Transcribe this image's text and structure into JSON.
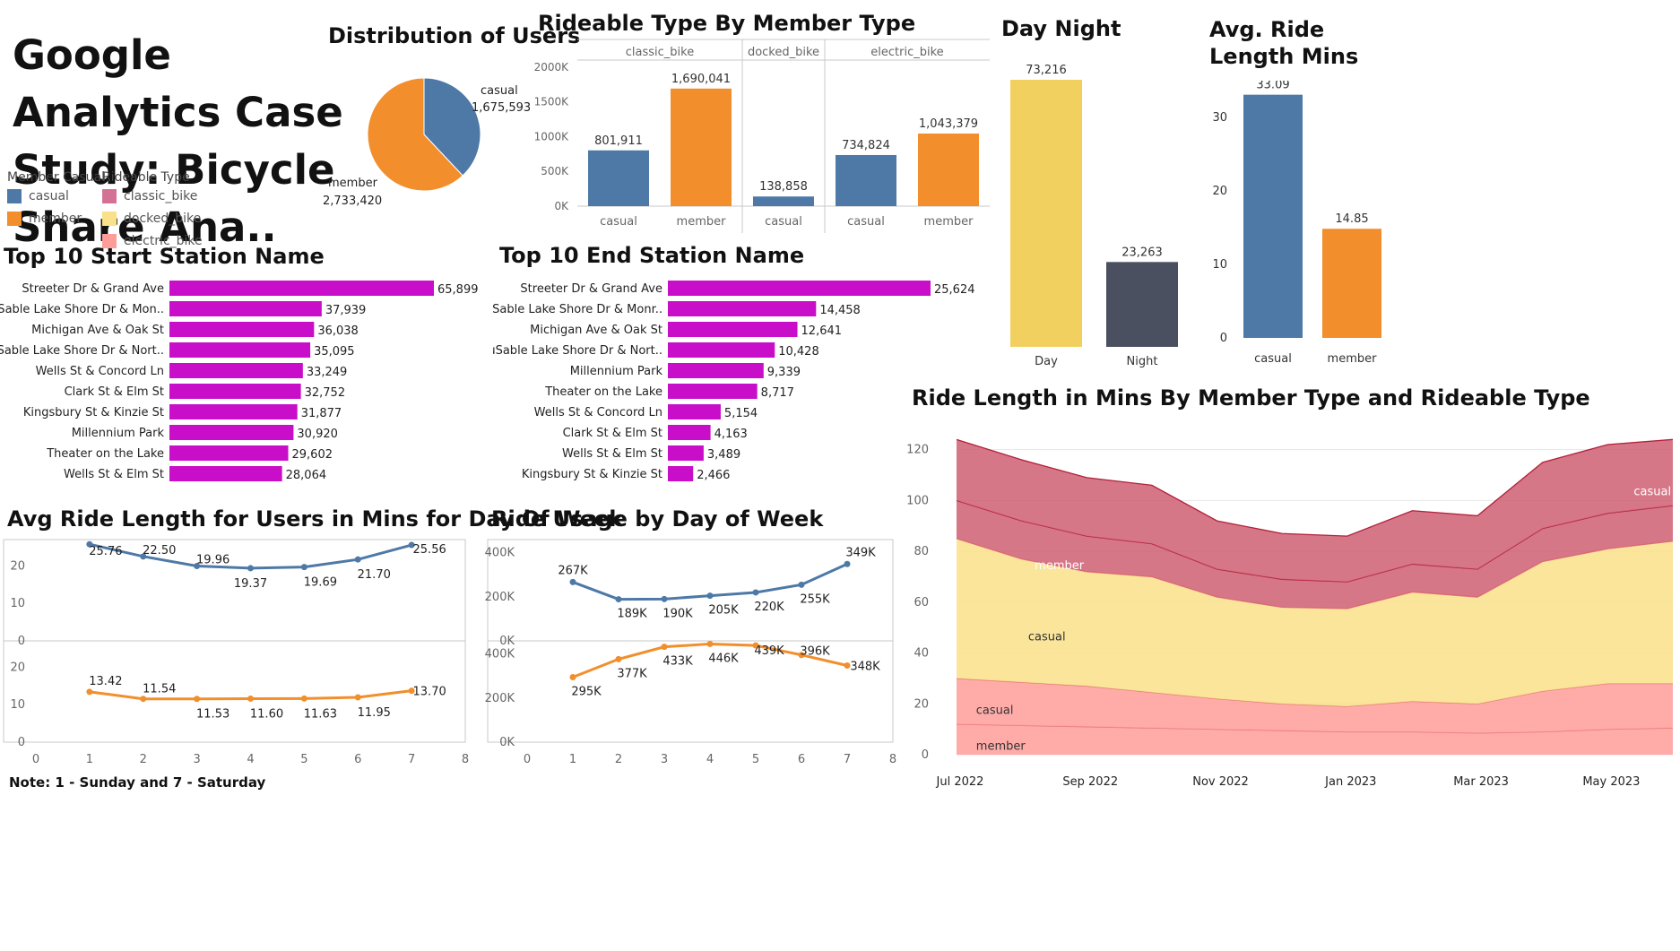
{
  "dashboard": {
    "title": "Google Analytics Case Study: Bicycle Share Ana..",
    "note": "Note: 1 - Sunday and 7 - Saturday"
  },
  "colors": {
    "casual": "#4e79a7",
    "member": "#f28e2b",
    "classic_bike": "#d37295",
    "docked_bike": "#f9e08a",
    "electric_bike": "#ff9d9a",
    "magenta": "#c80ec8",
    "day": "#f2d060",
    "night": "#4a5060"
  },
  "legends": {
    "member_casual": {
      "title": "Member Casual",
      "items": [
        {
          "label": "casual",
          "color": "#4e79a7"
        },
        {
          "label": "member",
          "color": "#f28e2b"
        }
      ]
    },
    "rideable_type": {
      "title": "Rideable Type",
      "items": [
        {
          "label": "classic_bike",
          "color": "#d37295"
        },
        {
          "label": "docked_bike",
          "color": "#f9e08a"
        },
        {
          "label": "electric_bike",
          "color": "#ff9d9a"
        }
      ]
    }
  },
  "chart_data": [
    {
      "id": "distribution",
      "type": "pie",
      "title": "Distribution of Users",
      "slices": [
        {
          "label": "casual",
          "value": 1675593,
          "display": "1,675,593",
          "color": "#4e79a7"
        },
        {
          "label": "member",
          "value": 2733420,
          "display": "2,733,420",
          "color": "#f28e2b"
        }
      ]
    },
    {
      "id": "rideable",
      "type": "bar",
      "title": "Rideable Type By Member Type",
      "groups": [
        {
          "name": "classic_bike",
          "bars": [
            {
              "label": "casual",
              "value": 801911,
              "display": "801,911"
            },
            {
              "label": "member",
              "value": 1690041,
              "display": "1,690,041"
            }
          ]
        },
        {
          "name": "docked_bike",
          "bars": [
            {
              "label": "casual",
              "value": 138858,
              "display": "138,858"
            }
          ]
        },
        {
          "name": "electric_bike",
          "bars": [
            {
              "label": "casual",
              "value": 734824,
              "display": "734,824"
            },
            {
              "label": "member",
              "value": 1043379,
              "display": "1,043,379"
            }
          ]
        }
      ],
      "yticks": [
        {
          "value": 0,
          "label": "0K"
        },
        {
          "value": 500000,
          "label": "500K"
        },
        {
          "value": 1000000,
          "label": "1000K"
        },
        {
          "value": 1500000,
          "label": "1500K"
        },
        {
          "value": 2000000,
          "label": "2000K"
        }
      ],
      "ylim": [
        0,
        2100000
      ]
    },
    {
      "id": "daynight",
      "type": "bar",
      "title": "Day Night",
      "categories": [
        "Day",
        "Night"
      ],
      "values": [
        73216,
        23263
      ],
      "labels": [
        "73,216",
        "23,263"
      ],
      "ylim": [
        0,
        80000
      ]
    },
    {
      "id": "avgride",
      "type": "bar",
      "title": "Avg. Ride Length Mins",
      "categories": [
        "casual",
        "member"
      ],
      "values": [
        33.09,
        14.85
      ],
      "labels": [
        "33.09",
        "14.85"
      ],
      "yticks": [
        0,
        10,
        20,
        30
      ],
      "ylim": [
        0,
        36
      ]
    },
    {
      "id": "topstart",
      "type": "bar",
      "title": "Top 10 Start Station Name",
      "categories": [
        "Streeter Dr & Grand Ave",
        "DuSable Lake Shore Dr & Mon..",
        "Michigan Ave & Oak St",
        "DuSable Lake Shore Dr & Nort..",
        "Wells St & Concord Ln",
        "Clark St & Elm St",
        "Kingsbury St & Kinzie St",
        "Millennium Park",
        "Theater on the Lake",
        "Wells St & Elm St"
      ],
      "values": [
        65899,
        37939,
        36038,
        35095,
        33249,
        32752,
        31877,
        30920,
        29602,
        28064
      ],
      "labels": [
        "65,899",
        "37,939",
        "36,038",
        "35,095",
        "33,249",
        "32,752",
        "31,877",
        "30,920",
        "29,602",
        "28,064"
      ],
      "xlim": [
        0,
        65899
      ]
    },
    {
      "id": "topend",
      "type": "bar",
      "title": "Top 10 End Station Name",
      "categories": [
        "Streeter Dr & Grand Ave",
        "DuSable Lake Shore Dr & Monr..",
        "Michigan Ave & Oak St",
        "DuSable Lake Shore Dr & Nort..",
        "Millennium Park",
        "Theater on the Lake",
        "Wells St & Concord Ln",
        "Clark St & Elm St",
        "Wells St & Elm St",
        "Kingsbury St & Kinzie St"
      ],
      "values": [
        25624,
        14458,
        12641,
        10428,
        9339,
        8717,
        5154,
        4163,
        3489,
        2466
      ],
      "labels": [
        "25,624",
        "14,458",
        "12,641",
        "10,428",
        "9,339",
        "8,717",
        "5,154",
        "4,163",
        "3,489",
        "2,466"
      ],
      "xlim": [
        0,
        25624
      ]
    },
    {
      "id": "avgdow",
      "type": "line",
      "title": "Avg Ride Length for Users in Mins for Day Of Week",
      "x": [
        1,
        2,
        3,
        4,
        5,
        6,
        7
      ],
      "xticks": [
        0,
        1,
        2,
        3,
        4,
        5,
        6,
        7,
        8
      ],
      "xlim": [
        0,
        8
      ],
      "yticks": [
        0,
        10,
        20
      ],
      "ylim": [
        0,
        27
      ],
      "series": [
        {
          "values": [
            25.76,
            22.5,
            19.96,
            19.37,
            19.69,
            21.7,
            25.56
          ],
          "labels": [
            "25.76",
            "22.50",
            "19.96",
            "19.37",
            "19.69",
            "21.70",
            "25.56"
          ],
          "color": "#4e79a7"
        },
        {
          "values": [
            13.42,
            11.54,
            11.53,
            11.6,
            11.63,
            11.95,
            13.7
          ],
          "labels": [
            "13.42",
            "11.54",
            "11.53",
            "11.60",
            "11.63",
            "11.95",
            "13.70"
          ],
          "color": "#f28e2b"
        }
      ]
    },
    {
      "id": "usagedow",
      "type": "line",
      "title": "Ride Usage by Day of Week",
      "x": [
        1,
        2,
        3,
        4,
        5,
        6,
        7
      ],
      "xticks": [
        0,
        1,
        2,
        3,
        4,
        5,
        6,
        7,
        8
      ],
      "xlim": [
        0,
        8
      ],
      "yticks": [
        {
          "value": 0,
          "label": "0K"
        },
        {
          "value": 200000,
          "label": "200K"
        },
        {
          "value": 400000,
          "label": "400K"
        }
      ],
      "ylim": [
        0,
        460000
      ],
      "series": [
        {
          "values": [
            267000,
            189000,
            190000,
            205000,
            220000,
            255000,
            349000
          ],
          "labels": [
            "267K",
            "189K",
            "190K",
            "205K",
            "220K",
            "255K",
            "349K"
          ],
          "color": "#4e79a7"
        },
        {
          "values": [
            295000,
            377000,
            433000,
            446000,
            439000,
            396000,
            348000
          ],
          "labels": [
            "295K",
            "377K",
            "433K",
            "446K",
            "439K",
            "396K",
            "348K"
          ],
          "color": "#f28e2b"
        }
      ]
    },
    {
      "id": "ridelength",
      "type": "area",
      "title": "Ride Length in Mins By Member Type and Rideable Type",
      "x_labels": [
        "Jul 2022",
        "Sep 2022",
        "Nov 2022",
        "Jan 2023",
        "Mar 2023",
        "May 2023"
      ],
      "yticks": [
        0,
        20,
        40,
        60,
        80,
        100,
        120
      ],
      "ylim": [
        0,
        125
      ],
      "n_points": 12,
      "bands": [
        {
          "rideable": "electric_bike",
          "member": "member",
          "top": [
            12,
            11.5,
            11,
            10.5,
            10,
            9.5,
            9,
            9,
            8.5,
            9,
            10,
            10.5
          ],
          "color": "#ff9d9a"
        },
        {
          "rideable": "electric_bike",
          "member": "casual",
          "top": [
            30,
            28.5,
            27,
            24.5,
            22,
            20,
            19,
            21,
            20,
            25,
            28,
            28
          ],
          "color": "#ff9d9a"
        },
        {
          "rideable": "docked_bike",
          "member": "casual",
          "top": [
            85,
            77,
            72,
            70,
            62,
            58,
            57.5,
            64,
            62,
            76,
            81,
            84
          ],
          "color": "#f9e08a"
        },
        {
          "rideable": "classic_bike",
          "member": "member",
          "top": [
            100,
            92,
            86,
            83,
            73,
            69,
            68,
            75,
            73,
            89,
            95,
            98
          ],
          "color": "#cf5f72"
        },
        {
          "rideable": "classic_bike",
          "member": "casual",
          "top": [
            124,
            116,
            109,
            106,
            92,
            87,
            86,
            96,
            94,
            115,
            122,
            124
          ],
          "color": "#cf5f72"
        }
      ],
      "annotations": [
        "casual",
        "member",
        "casual",
        "casual",
        "member"
      ]
    }
  ]
}
